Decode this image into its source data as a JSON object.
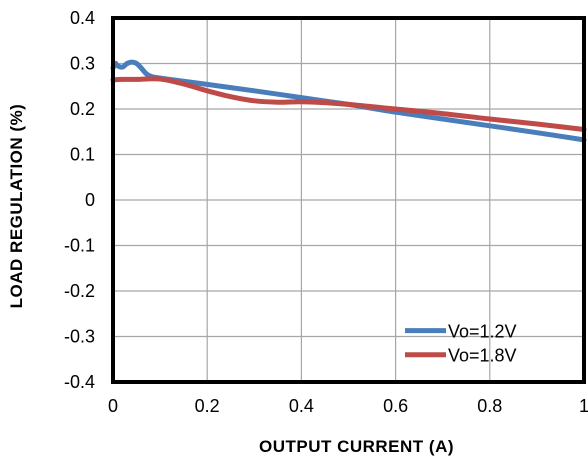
{
  "chart_data": {
    "type": "line",
    "title": "",
    "xlabel": "OUTPUT  CURRENT  (A)",
    "ylabel": "LOAD REGULATION  (%)",
    "xlim": [
      0,
      1
    ],
    "ylim": [
      -0.4,
      0.4
    ],
    "xticks": [
      0,
      0.2,
      0.4,
      0.6,
      0.8,
      1
    ],
    "xtick_labels": [
      "0",
      "0.2",
      "0.4",
      "0.6",
      "0.8",
      "1"
    ],
    "yticks": [
      0.4,
      0.3,
      0.2,
      0.1,
      0,
      -0.1,
      -0.2,
      -0.3,
      -0.4
    ],
    "ytick_labels": [
      "0.4",
      "0.3",
      "0.2",
      "0.1",
      "0",
      "-0.1",
      "-0.2",
      "-0.3",
      "-0.4"
    ],
    "grid": true,
    "legend_position": "bottom-right",
    "series": [
      {
        "name": "Vo=1.2V",
        "color": "#4a7ebb",
        "x": [
          0,
          0.005,
          0.01,
          0.02,
          0.03,
          0.04,
          0.05,
          0.06,
          0.07,
          0.08,
          0.1,
          0.2,
          0.3,
          0.4,
          0.5,
          0.6,
          0.7,
          0.8,
          0.9,
          1.0
        ],
        "y": [
          0.29,
          0.3,
          0.295,
          0.292,
          0.3,
          0.303,
          0.3,
          0.29,
          0.278,
          0.272,
          0.268,
          0.254,
          0.24,
          0.225,
          0.21,
          0.193,
          0.178,
          0.163,
          0.148,
          0.132
        ]
      },
      {
        "name": "Vo=1.8V",
        "color": "#be4b48",
        "x": [
          0,
          0.02,
          0.05,
          0.1,
          0.15,
          0.2,
          0.25,
          0.3,
          0.35,
          0.4,
          0.45,
          0.5,
          0.6,
          0.7,
          0.8,
          0.9,
          1.0
        ],
        "y": [
          0.264,
          0.265,
          0.265,
          0.266,
          0.255,
          0.24,
          0.227,
          0.218,
          0.215,
          0.216,
          0.214,
          0.21,
          0.2,
          0.19,
          0.178,
          0.167,
          0.155
        ]
      }
    ]
  }
}
